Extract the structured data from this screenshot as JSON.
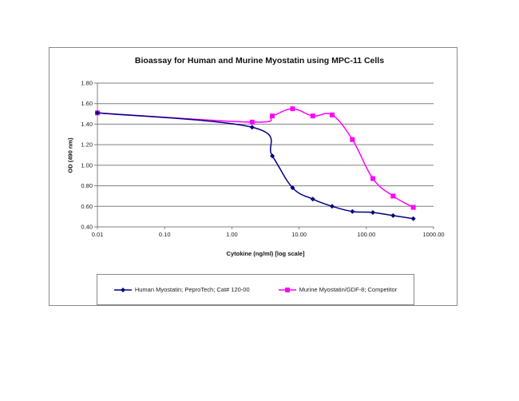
{
  "chart_data": {
    "type": "line",
    "title": "Bioassay for Human and Murine Myostatin using MPC-11 Cells",
    "xlabel": "Cytokine (ng/ml) [log scale]",
    "ylabel": "OD (490 nm)",
    "x_scale": "log",
    "xlim": [
      0.01,
      1000
    ],
    "ylim": [
      0.4,
      1.8
    ],
    "x_ticks": [
      "0.01",
      "0.10",
      "1.00",
      "10.00",
      "100.00",
      "1000.00"
    ],
    "y_ticks": [
      "0.40",
      "0.60",
      "0.80",
      "1.00",
      "1.20",
      "1.40",
      "1.60",
      "1.80"
    ],
    "grid": "horizontal",
    "legend_position": "bottom",
    "series": [
      {
        "name": "Human Myostatin; PeproTech; Cat# 120-00",
        "color": "#000080",
        "marker": "diamond",
        "x": [
          0.01,
          2,
          4,
          8,
          16,
          31,
          62,
          125,
          250,
          500
        ],
        "values": [
          1.51,
          1.37,
          1.09,
          0.78,
          0.67,
          0.6,
          0.55,
          0.54,
          0.51,
          0.48
        ]
      },
      {
        "name": "Murine Myostatin/GDF-8; Competitor",
        "color": "#ff00ff",
        "marker": "square",
        "x": [
          0.01,
          2,
          4,
          8,
          16,
          31,
          62,
          125,
          250,
          500
        ],
        "values": [
          1.51,
          1.42,
          1.48,
          1.55,
          1.48,
          1.49,
          1.25,
          0.87,
          0.7,
          0.59
        ]
      }
    ]
  }
}
